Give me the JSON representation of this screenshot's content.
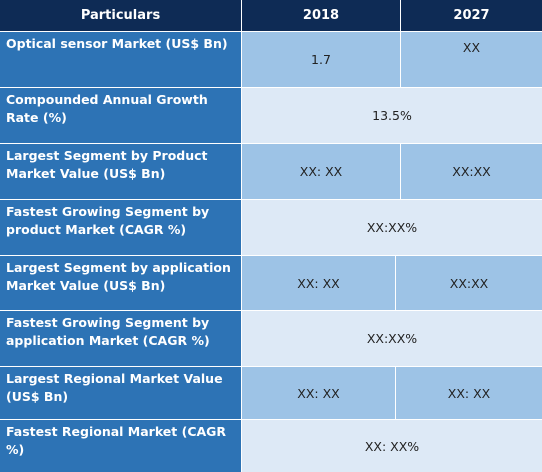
{
  "table": {
    "headers": [
      "Particulars",
      "2018",
      "2027"
    ],
    "rows": [
      {
        "label": "Optical sensor Market (US$ Bn)",
        "v2018": "1.7",
        "v2027": "XX"
      },
      {
        "label": "Compounded Annual Growth Rate (%)",
        "merged": "13.5%"
      },
      {
        "label": "Largest Segment by Product Market Value (US$ Bn)",
        "v2018": "XX: XX",
        "v2027": "XX:XX"
      },
      {
        "label": "Fastest Growing Segment by product Market (CAGR %)",
        "merged": "XX:XX%"
      },
      {
        "label": "Largest Segment by application Market Value (US$ Bn)",
        "v2018": "XX: XX",
        "v2027": "XX:XX"
      },
      {
        "label": "Fastest Growing Segment by application Market (CAGR %)",
        "merged": "XX:XX%"
      },
      {
        "label": "Largest Regional Market Value (US$ Bn)",
        "v2018": "XX: XX",
        "v2027": "XX: XX"
      },
      {
        "label": "Fastest Regional Market (CAGR %)",
        "merged": "XX: XX%"
      }
    ]
  }
}
